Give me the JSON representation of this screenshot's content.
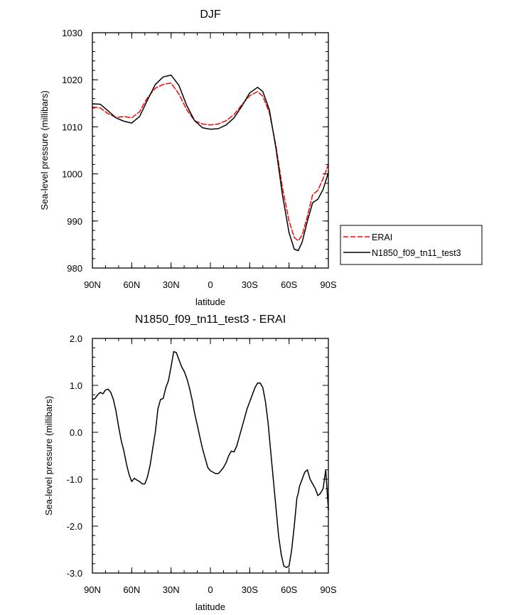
{
  "chart_data": [
    {
      "type": "line",
      "title": "DJF",
      "xlabel": "latitude",
      "ylabel": "Sea-level pressure (millibars)",
      "xlim": [
        90,
        -90
      ],
      "ylim": [
        980,
        1030
      ],
      "xticks": [
        {
          "value": 90,
          "label": "90N"
        },
        {
          "value": 60,
          "label": "60N"
        },
        {
          "value": 30,
          "label": "30N"
        },
        {
          "value": 0,
          "label": "0"
        },
        {
          "value": -30,
          "label": "30S"
        },
        {
          "value": -60,
          "label": "60S"
        },
        {
          "value": -90,
          "label": "90S"
        }
      ],
      "yticks": [
        {
          "value": 980,
          "label": "980"
        },
        {
          "value": 990,
          "label": "990"
        },
        {
          "value": 1000,
          "label": "1000"
        },
        {
          "value": 1010,
          "label": "1010"
        },
        {
          "value": 1020,
          "label": "1020"
        },
        {
          "value": 1030,
          "label": "1030"
        }
      ],
      "legend_position": "right",
      "series": [
        {
          "name": "ERAI",
          "color": "#ff0000",
          "dashed": true,
          "x": [
            90,
            84,
            78,
            72,
            66,
            60,
            54,
            48,
            42,
            36,
            30,
            24,
            18,
            12,
            6,
            0,
            -6,
            -12,
            -18,
            -24,
            -30,
            -36,
            -40,
            -45,
            -50,
            -55,
            -60,
            -64,
            -67,
            -70,
            -74,
            -78,
            -82,
            -86,
            -90
          ],
          "y": [
            1014.2,
            1014.0,
            1012.8,
            1012.0,
            1012.2,
            1011.9,
            1013.2,
            1016.2,
            1018.2,
            1019.0,
            1019.3,
            1017.0,
            1013.6,
            1011.3,
            1010.6,
            1010.4,
            1010.6,
            1011.3,
            1012.6,
            1014.7,
            1016.6,
            1017.5,
            1016.5,
            1013.0,
            1006.0,
            997.0,
            990.0,
            986.5,
            985.8,
            987.0,
            991.0,
            995.6,
            996.5,
            999.0,
            1002.0
          ]
        },
        {
          "name": "N1850_f09_tn11_test3",
          "color": "#000000",
          "dashed": false,
          "x": [
            90,
            84,
            78,
            72,
            66,
            60,
            54,
            48,
            42,
            36,
            30,
            24,
            18,
            12,
            6,
            0,
            -6,
            -12,
            -18,
            -24,
            -30,
            -36,
            -40,
            -45,
            -50,
            -55,
            -60,
            -64,
            -67,
            -70,
            -74,
            -78,
            -82,
            -86,
            -90
          ],
          "y": [
            1014.9,
            1014.8,
            1013.4,
            1011.9,
            1011.2,
            1010.8,
            1012.2,
            1015.7,
            1019.0,
            1020.6,
            1021.0,
            1018.8,
            1014.5,
            1011.3,
            1009.8,
            1009.5,
            1009.6,
            1010.4,
            1011.9,
            1014.4,
            1017.2,
            1018.4,
            1017.5,
            1013.6,
            1005.5,
            995.5,
            987.5,
            984.0,
            983.7,
            985.5,
            990.0,
            993.9,
            994.6,
            996.7,
            1000.3
          ]
        }
      ]
    },
    {
      "type": "line",
      "title": "N1850_f09_tn11_test3 - ERAI",
      "xlabel": "latitude",
      "ylabel": "Sea-level pressure (millibars)",
      "xlim": [
        90,
        -90
      ],
      "ylim": [
        -3.0,
        2.0
      ],
      "xticks": [
        {
          "value": 90,
          "label": "90N"
        },
        {
          "value": 60,
          "label": "60N"
        },
        {
          "value": 30,
          "label": "30N"
        },
        {
          "value": 0,
          "label": "0"
        },
        {
          "value": -30,
          "label": "30S"
        },
        {
          "value": -60,
          "label": "60S"
        },
        {
          "value": -90,
          "label": "90S"
        }
      ],
      "yticks": [
        {
          "value": -3.0,
          "label": "-3.0"
        },
        {
          "value": -2.0,
          "label": "-2.0"
        },
        {
          "value": -1.0,
          "label": "-1.0"
        },
        {
          "value": 0.0,
          "label": "0.0"
        },
        {
          "value": 1.0,
          "label": "1.0"
        },
        {
          "value": 2.0,
          "label": "2.0"
        }
      ],
      "series": [
        {
          "color": "#000000",
          "dashed": false,
          "x": [
            90,
            88,
            86,
            84,
            82,
            80,
            78,
            76,
            74,
            72,
            70,
            68,
            66,
            64,
            62,
            60,
            58,
            56,
            54,
            52,
            50,
            48,
            46,
            44,
            42,
            41,
            40,
            38,
            36,
            34,
            32,
            30,
            28,
            26,
            24,
            22,
            20,
            18,
            16,
            14,
            12,
            10,
            8,
            6,
            4,
            2,
            0,
            -2,
            -4,
            -6,
            -8,
            -10,
            -12,
            -14,
            -16,
            -18,
            -20,
            -22,
            -24,
            -26,
            -28,
            -30,
            -32,
            -34,
            -36,
            -38,
            -40,
            -42,
            -44,
            -46,
            -48,
            -50,
            -52,
            -54,
            -56,
            -58,
            -60,
            -62,
            -64,
            -66,
            -67,
            -68,
            -70,
            -72,
            -74,
            -76,
            -78,
            -80,
            -82,
            -84,
            -86,
            -88,
            -90
          ],
          "y": [
            0.7,
            0.72,
            0.8,
            0.85,
            0.82,
            0.9,
            0.92,
            0.85,
            0.7,
            0.45,
            0.12,
            -0.18,
            -0.4,
            -0.68,
            -0.9,
            -1.05,
            -0.98,
            -1.02,
            -1.05,
            -1.1,
            -1.1,
            -0.95,
            -0.7,
            -0.35,
            0.0,
            0.25,
            0.5,
            0.7,
            0.72,
            0.95,
            1.1,
            1.4,
            1.72,
            1.7,
            1.55,
            1.4,
            1.3,
            1.15,
            0.95,
            0.7,
            0.4,
            0.15,
            -0.1,
            -0.35,
            -0.55,
            -0.75,
            -0.82,
            -0.85,
            -0.88,
            -0.88,
            -0.82,
            -0.75,
            -0.65,
            -0.5,
            -0.4,
            -0.42,
            -0.3,
            -0.1,
            0.1,
            0.3,
            0.5,
            0.65,
            0.8,
            0.95,
            1.05,
            1.05,
            0.95,
            0.65,
            0.2,
            -0.4,
            -1.0,
            -1.6,
            -2.2,
            -2.6,
            -2.85,
            -2.88,
            -2.85,
            -2.5,
            -2.0,
            -1.4,
            -1.3,
            -1.15,
            -1.0,
            -0.85,
            -0.8,
            -1.0,
            -1.1,
            -1.2,
            -1.35,
            -1.3,
            -1.2,
            -0.8,
            -1.65
          ]
        }
      ]
    }
  ]
}
